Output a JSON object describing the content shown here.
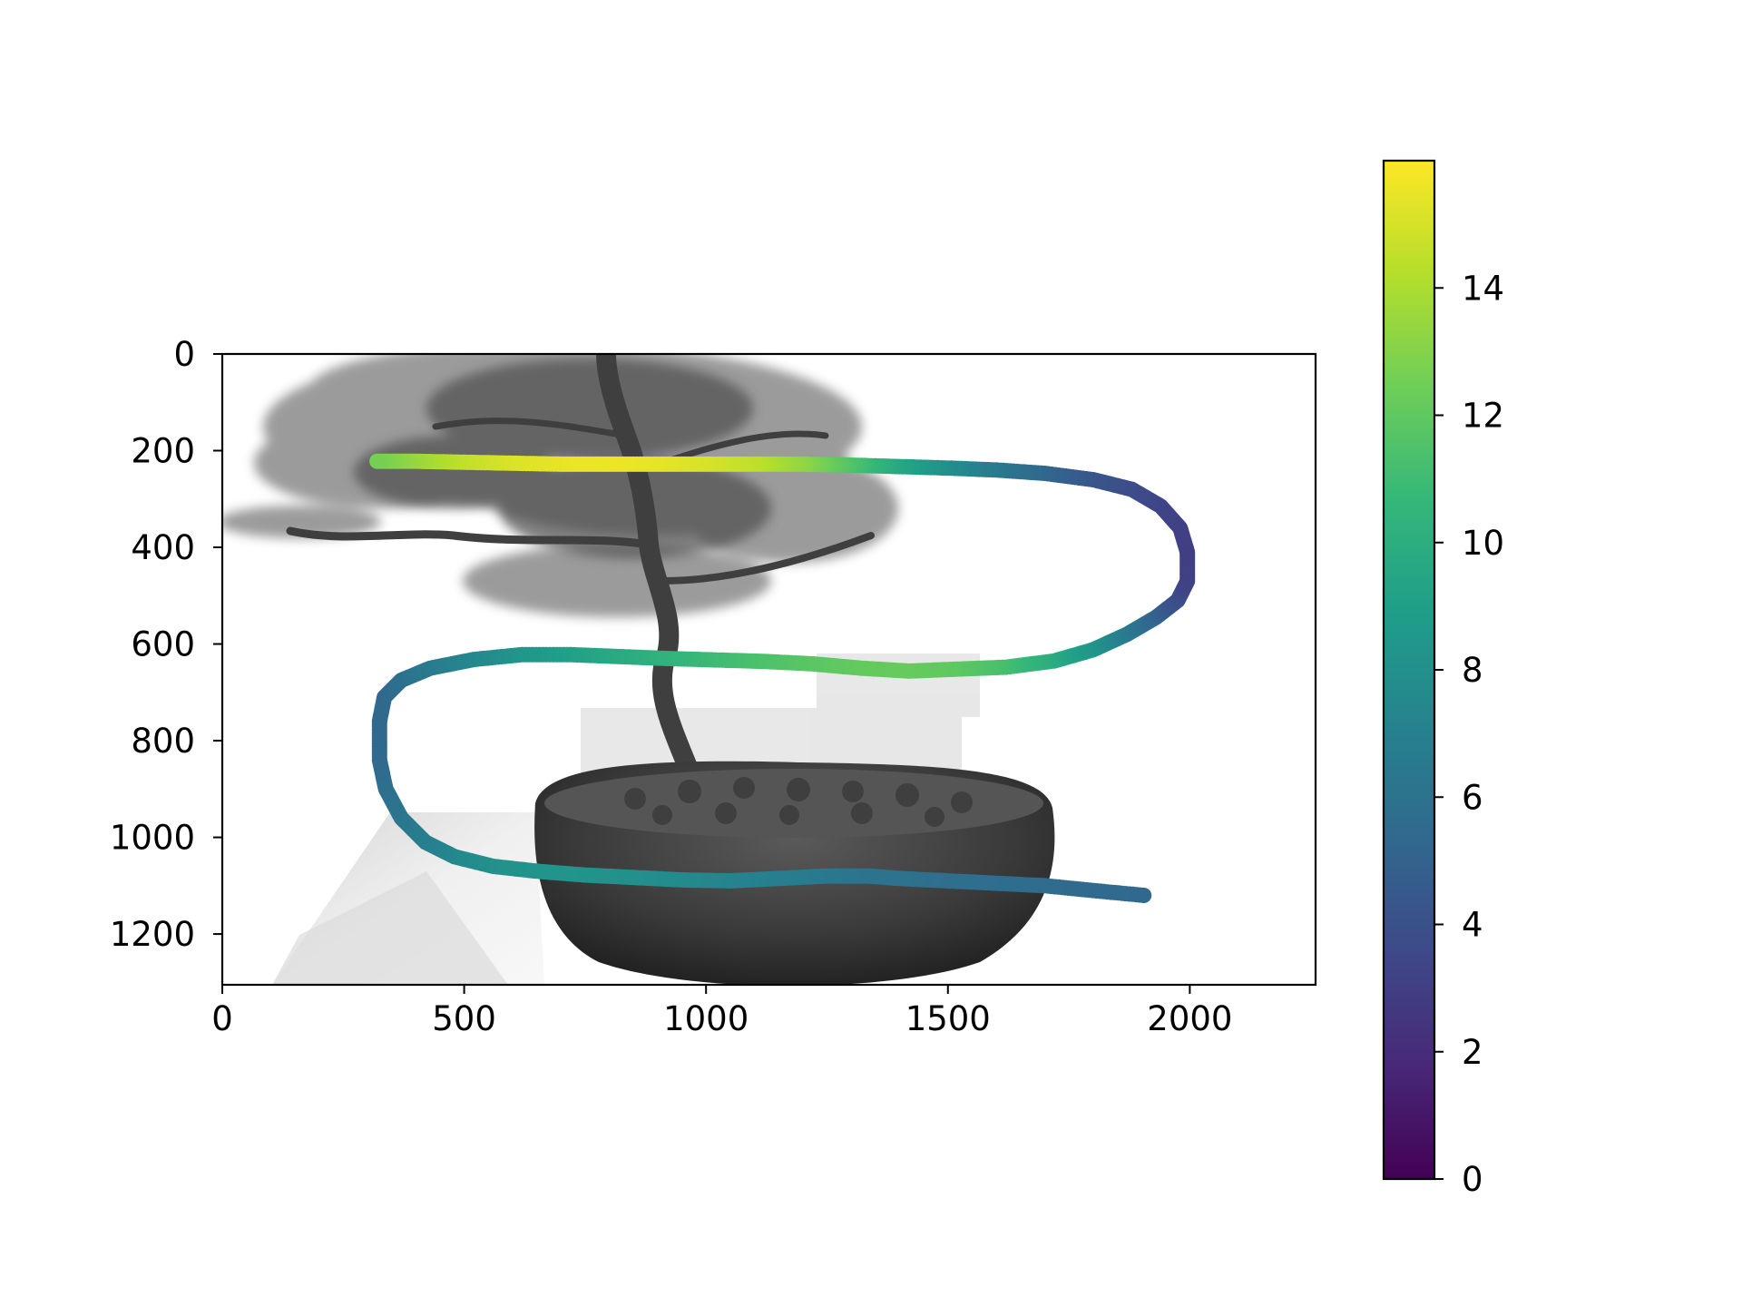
{
  "chart_data": {
    "type": "scatter",
    "title": "",
    "xlabel": "",
    "ylabel": "",
    "background_image": "bonsai-tree-in-pot-grayscale",
    "xlim": [
      0,
      2260
    ],
    "ylim": [
      1305,
      0
    ],
    "y_inverted": true,
    "x_ticks": [
      0,
      500,
      1000,
      1500,
      2000
    ],
    "y_ticks": [
      0,
      200,
      400,
      600,
      800,
      1000,
      1200
    ],
    "grid": false,
    "legend": "none",
    "colormap": "viridis",
    "color_range": [
      0,
      16
    ],
    "colorbar_ticks": [
      0,
      2,
      4,
      6,
      8,
      10,
      12,
      14
    ],
    "colorbar_stops": [
      "#440154",
      "#482878",
      "#3e4989",
      "#31688e",
      "#26828e",
      "#1f9e89",
      "#35b779",
      "#6ece58",
      "#b5de2b",
      "#fde725"
    ],
    "series": [
      {
        "x": [
          1905,
          1800,
          1700,
          1600,
          1500,
          1400,
          1335,
          1250,
          1150,
          1050,
          950,
          850,
          750,
          650,
          560,
          480,
          420,
          370,
          338,
          325,
          325,
          335,
          370,
          430,
          520,
          620,
          720,
          820,
          920,
          1020,
          1120,
          1220,
          1320,
          1420,
          1520,
          1620,
          1720,
          1800,
          1870,
          1930,
          1975,
          1995,
          1995,
          1980,
          1940,
          1880,
          1800,
          1700,
          1600,
          1500,
          1400,
          1300,
          1200,
          1100,
          1000,
          900,
          800,
          700,
          600,
          500,
          400,
          320
        ],
        "y": [
          1120,
          1110,
          1100,
          1095,
          1090,
          1085,
          1080,
          1080,
          1085,
          1090,
          1088,
          1083,
          1078,
          1070,
          1060,
          1040,
          1010,
          960,
          900,
          840,
          760,
          710,
          675,
          650,
          632,
          622,
          622,
          626,
          630,
          633,
          636,
          641,
          650,
          656,
          652,
          648,
          635,
          612,
          580,
          545,
          510,
          470,
          410,
          360,
          315,
          280,
          260,
          247,
          240,
          236,
          233,
          230,
          228,
          228,
          228,
          228,
          228,
          228,
          226,
          224,
          222,
          222
        ],
        "color": [
          5.4,
          5.5,
          5.6,
          5.7,
          5.8,
          6.0,
          6.1,
          6.4,
          6.8,
          7.2,
          7.6,
          8.0,
          8.2,
          8.3,
          8.1,
          7.6,
          7.0,
          6.4,
          5.9,
          5.5,
          5.3,
          5.4,
          5.8,
          6.5,
          7.4,
          8.3,
          9.0,
          9.7,
          10.3,
          10.9,
          11.4,
          11.8,
          12.1,
          12.2,
          12.0,
          11.3,
          10.0,
          8.5,
          6.8,
          5.2,
          4.0,
          3.2,
          3.0,
          3.1,
          3.3,
          3.7,
          4.2,
          5.2,
          6.4,
          7.8,
          9.4,
          11.4,
          13.2,
          14.4,
          15.0,
          15.4,
          15.6,
          15.5,
          15.2,
          14.6,
          13.6,
          12.6
        ]
      }
    ]
  }
}
